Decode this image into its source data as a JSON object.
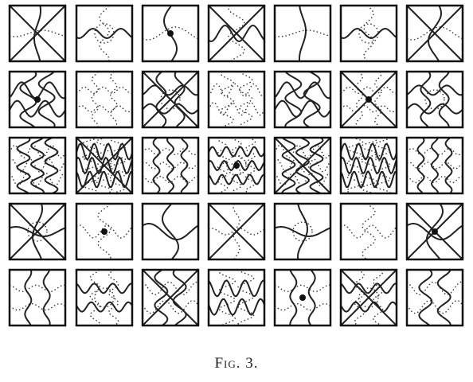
{
  "caption": "Fig. 3."
}
